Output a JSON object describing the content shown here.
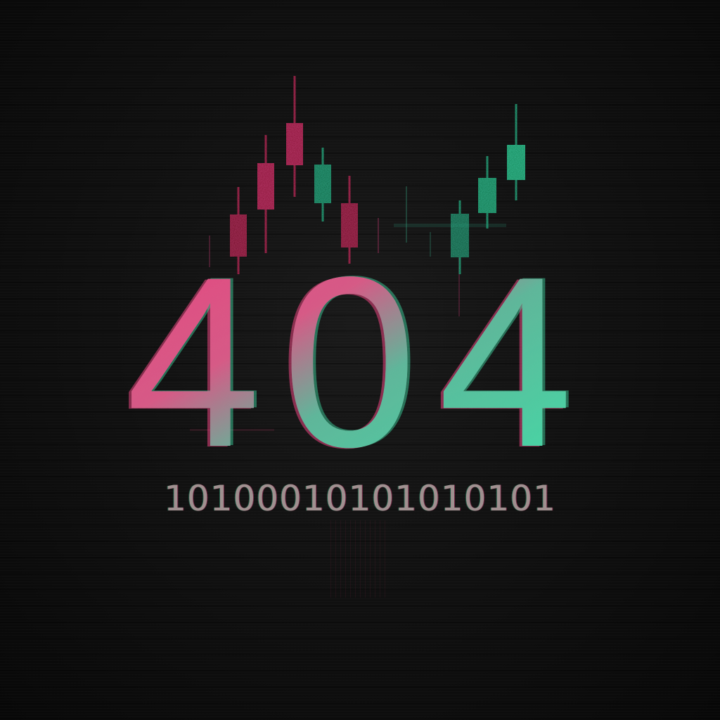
{
  "headline": {
    "code": "404",
    "digits": [
      "4",
      "0",
      "4"
    ]
  },
  "binary_text": "10100010101010101",
  "colors": {
    "background": "#0d0d0d",
    "pink": "#e8447f",
    "teal": "#3fe0a8",
    "candle_pink": "#a8325c",
    "candle_teal": "#2f9e7e",
    "binary": "#b9a6a6"
  },
  "candlesticks": [
    {
      "color": "pink"
    },
    {
      "color": "pink"
    },
    {
      "color": "pink"
    },
    {
      "color": "pink"
    },
    {
      "color": "teal"
    },
    {
      "color": "pink"
    },
    {
      "color": "pink"
    },
    {
      "color": "teal"
    },
    {
      "color": "teal"
    },
    {
      "color": "teal"
    },
    {
      "color": "teal"
    }
  ]
}
